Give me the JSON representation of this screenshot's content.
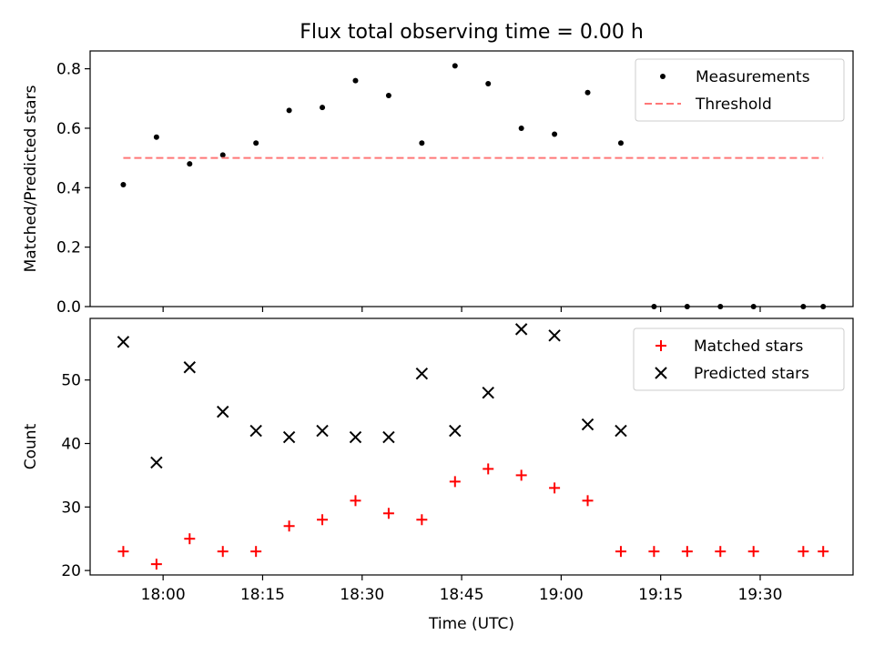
{
  "chart_data": {
    "title": "Flux total observing time = 0.00 h",
    "xlabel": "Time (UTC)",
    "x_ticks": [
      "18:00",
      "18:15",
      "18:30",
      "18:45",
      "19:00",
      "19:15",
      "19:30"
    ],
    "x_tick_minutes": [
      0,
      15,
      30,
      45,
      60,
      75,
      90
    ],
    "xlim_minutes": [
      -11,
      104
    ],
    "time_reference": "18:00",
    "panels": [
      {
        "type": "scatter",
        "ylabel": "Matched/Predicted stars",
        "ylim": [
          0,
          0.86
        ],
        "y_ticks": [
          "0.0",
          "0.2",
          "0.4",
          "0.6",
          "0.8"
        ],
        "y_tick_values": [
          0,
          0.2,
          0.4,
          0.6,
          0.8
        ],
        "legend_position": "top-right",
        "series": [
          {
            "name": "Measurements",
            "marker": "dot",
            "color": "#000000",
            "points": [
              [
                -6,
                0.41
              ],
              [
                -1,
                0.57
              ],
              [
                4,
                0.48
              ],
              [
                9,
                0.51
              ],
              [
                14,
                0.55
              ],
              [
                19,
                0.66
              ],
              [
                24,
                0.67
              ],
              [
                29,
                0.76
              ],
              [
                34,
                0.71
              ],
              [
                39,
                0.55
              ],
              [
                44,
                0.81
              ],
              [
                49,
                0.75
              ],
              [
                54,
                0.6
              ],
              [
                59,
                0.58
              ],
              [
                64,
                0.72
              ],
              [
                69,
                0.55
              ],
              [
                74,
                0.0
              ],
              [
                79,
                0.0
              ],
              [
                84,
                0.0
              ],
              [
                89,
                0.0
              ],
              [
                96.5,
                0.0
              ],
              [
                99.5,
                0.0
              ]
            ]
          },
          {
            "name": "Threshold",
            "marker": "dashed-line",
            "color": "#ff7777",
            "points": [
              [
                -6,
                0.5
              ],
              [
                99.5,
                0.5
              ]
            ]
          }
        ]
      },
      {
        "type": "scatter",
        "ylabel": "Count",
        "ylim": [
          19.3,
          59.7
        ],
        "y_ticks": [
          "20",
          "30",
          "40",
          "50"
        ],
        "y_tick_values": [
          20,
          30,
          40,
          50
        ],
        "legend_position": "top-right",
        "series": [
          {
            "name": "Matched stars",
            "marker": "plus",
            "color": "#ff0000",
            "points": [
              [
                -6,
                23
              ],
              [
                -1,
                21
              ],
              [
                4,
                25
              ],
              [
                9,
                23
              ],
              [
                14,
                23
              ],
              [
                19,
                27
              ],
              [
                24,
                28
              ],
              [
                29,
                31
              ],
              [
                34,
                29
              ],
              [
                39,
                28
              ],
              [
                44,
                34
              ],
              [
                49,
                36
              ],
              [
                54,
                35
              ],
              [
                59,
                33
              ],
              [
                64,
                31
              ],
              [
                69,
                23
              ],
              [
                74,
                23
              ],
              [
                79,
                23
              ],
              [
                84,
                23
              ],
              [
                89,
                23
              ],
              [
                96.5,
                23
              ],
              [
                99.5,
                23
              ]
            ]
          },
          {
            "name": "Predicted stars",
            "marker": "x",
            "color": "#000000",
            "points": [
              [
                -6,
                56
              ],
              [
                -1,
                37
              ],
              [
                4,
                52
              ],
              [
                9,
                45
              ],
              [
                14,
                42
              ],
              [
                19,
                41
              ],
              [
                24,
                42
              ],
              [
                29,
                41
              ],
              [
                34,
                41
              ],
              [
                39,
                51
              ],
              [
                44,
                42
              ],
              [
                49,
                48
              ],
              [
                54,
                58
              ],
              [
                59,
                57
              ],
              [
                64,
                43
              ],
              [
                69,
                42
              ]
            ]
          }
        ]
      }
    ]
  }
}
